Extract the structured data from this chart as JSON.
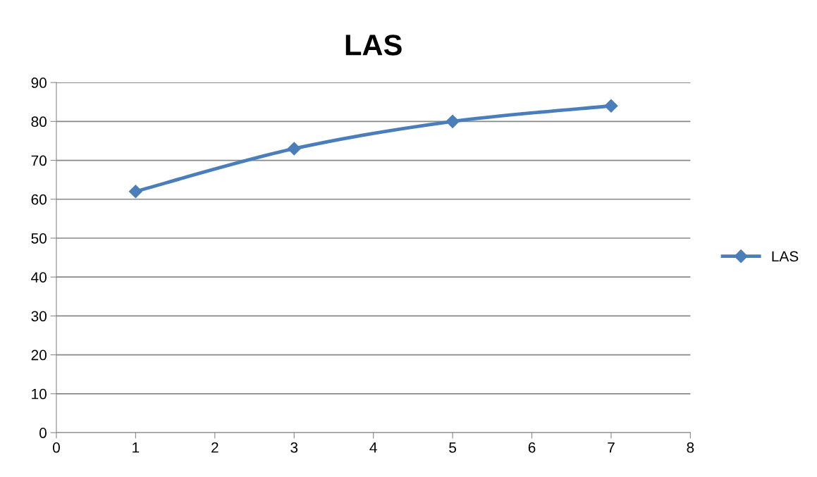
{
  "chart_data": {
    "type": "line",
    "title": "LAS",
    "x": [
      1,
      3,
      5,
      7
    ],
    "series": [
      {
        "name": "LAS",
        "color": "#4a7ebb",
        "values": [
          62,
          73,
          80,
          84
        ]
      }
    ],
    "xlim": [
      0,
      8
    ],
    "xticks": [
      0,
      1,
      2,
      3,
      4,
      5,
      6,
      7,
      8
    ],
    "ylim": [
      0,
      90
    ],
    "yticks": [
      0,
      10,
      20,
      30,
      40,
      50,
      60,
      70,
      80,
      90
    ],
    "grid": "y",
    "legend": "right",
    "marker": "diamond",
    "line_style": "solid"
  }
}
